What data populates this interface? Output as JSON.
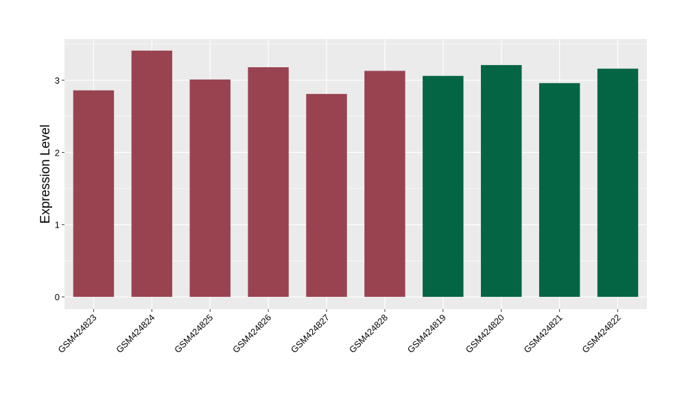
{
  "chart_data": {
    "type": "bar",
    "categories": [
      "GSM424823",
      "GSM424824",
      "GSM424825",
      "GSM424826",
      "GSM424827",
      "GSM424828",
      "GSM424819",
      "GSM424820",
      "GSM424821",
      "GSM424822"
    ],
    "values": [
      2.86,
      3.41,
      3.01,
      3.18,
      2.81,
      3.13,
      3.06,
      3.21,
      2.96,
      3.16
    ],
    "bar_colors": [
      "#9A4350",
      "#9A4350",
      "#9A4350",
      "#9A4350",
      "#9A4350",
      "#9A4350",
      "#036544",
      "#036544",
      "#036544",
      "#036544"
    ],
    "ylabel": "Expression Level",
    "yticks": [
      0,
      1,
      2,
      3
    ],
    "ylim": [
      -0.17,
      3.57
    ],
    "panel_background": "#EBEBEB",
    "grid_color": "#FFFFFF",
    "grid": true,
    "legend": false
  }
}
